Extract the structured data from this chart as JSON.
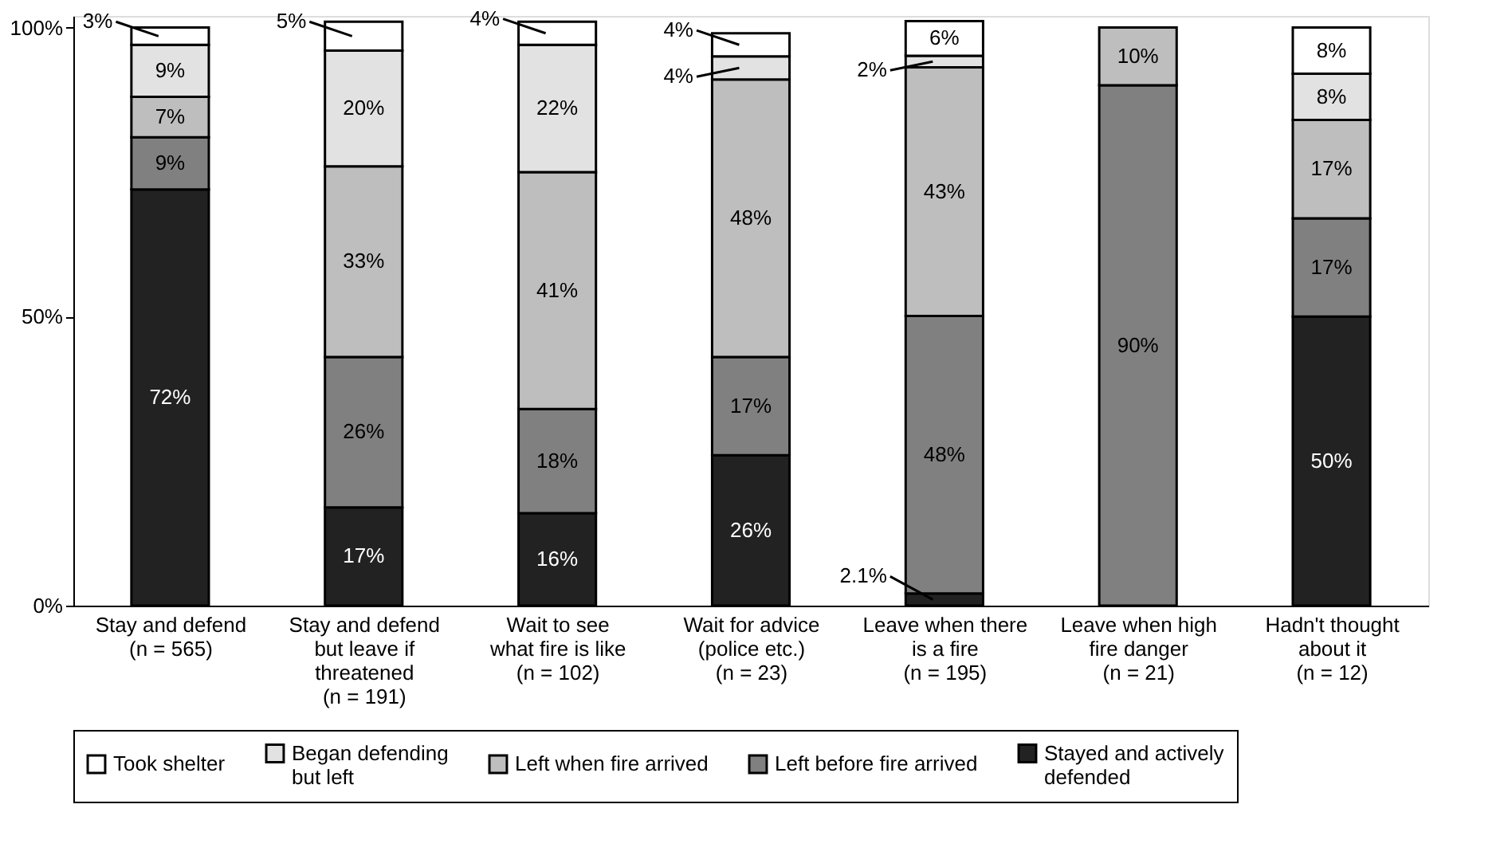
{
  "chart_data": {
    "type": "bar",
    "stacked": true,
    "categories": [
      "Stay and defend\n(n = 565)",
      "Stay and defend\nbut leave if\nthreatened\n(n = 191)",
      "Wait to see\nwhat fire is like\n(n = 102)",
      "Wait for advice\n(police etc.)\n(n = 23)",
      "Leave when there\nis a fire\n(n = 195)",
      "Leave when high\nfire danger\n(n = 21)",
      "Hadn't thought\nabout it\n(n = 12)"
    ],
    "series": [
      {
        "name": "Stayed and actively\ndefended",
        "color": "#222222",
        "values": [
          72,
          17,
          16,
          26,
          2.1,
          null,
          50
        ],
        "value_labels": [
          "72%",
          "17%",
          "16%",
          "26%",
          "2.1%",
          null,
          "50%"
        ]
      },
      {
        "name": "Left before fire arrived",
        "color": "#808080",
        "values": [
          9,
          26,
          18,
          17,
          48,
          90,
          17
        ],
        "value_labels": [
          "9%",
          "26%",
          "18%",
          "17%",
          "48%",
          "90%",
          "17%"
        ]
      },
      {
        "name": "Left when fire arrived",
        "color": "#bebebe",
        "values": [
          7,
          33,
          41,
          48,
          43,
          10,
          17
        ],
        "value_labels": [
          "7%",
          "33%",
          "41%",
          "48%",
          "43%",
          "10%",
          "17%"
        ]
      },
      {
        "name": "Began defending\nbut left",
        "color": "#e2e2e2",
        "values": [
          9,
          20,
          22,
          4,
          2,
          null,
          8
        ],
        "value_labels": [
          "9%",
          "20%",
          "22%",
          "4%",
          "2%",
          null,
          "8%"
        ]
      },
      {
        "name": "Took shelter",
        "color": "#ffffff",
        "values": [
          3,
          5,
          4,
          4,
          6,
          null,
          8
        ],
        "value_labels": [
          "3%",
          "5%",
          "4%",
          "4%",
          "6%",
          null,
          "8%"
        ]
      }
    ],
    "ylim": [
      0,
      102
    ],
    "yticks": [
      {
        "value": 0,
        "label": "0%"
      },
      {
        "value": 50,
        "label": "50%"
      },
      {
        "value": 100,
        "label": "100%"
      }
    ],
    "grid": false,
    "legend": "bottom"
  }
}
